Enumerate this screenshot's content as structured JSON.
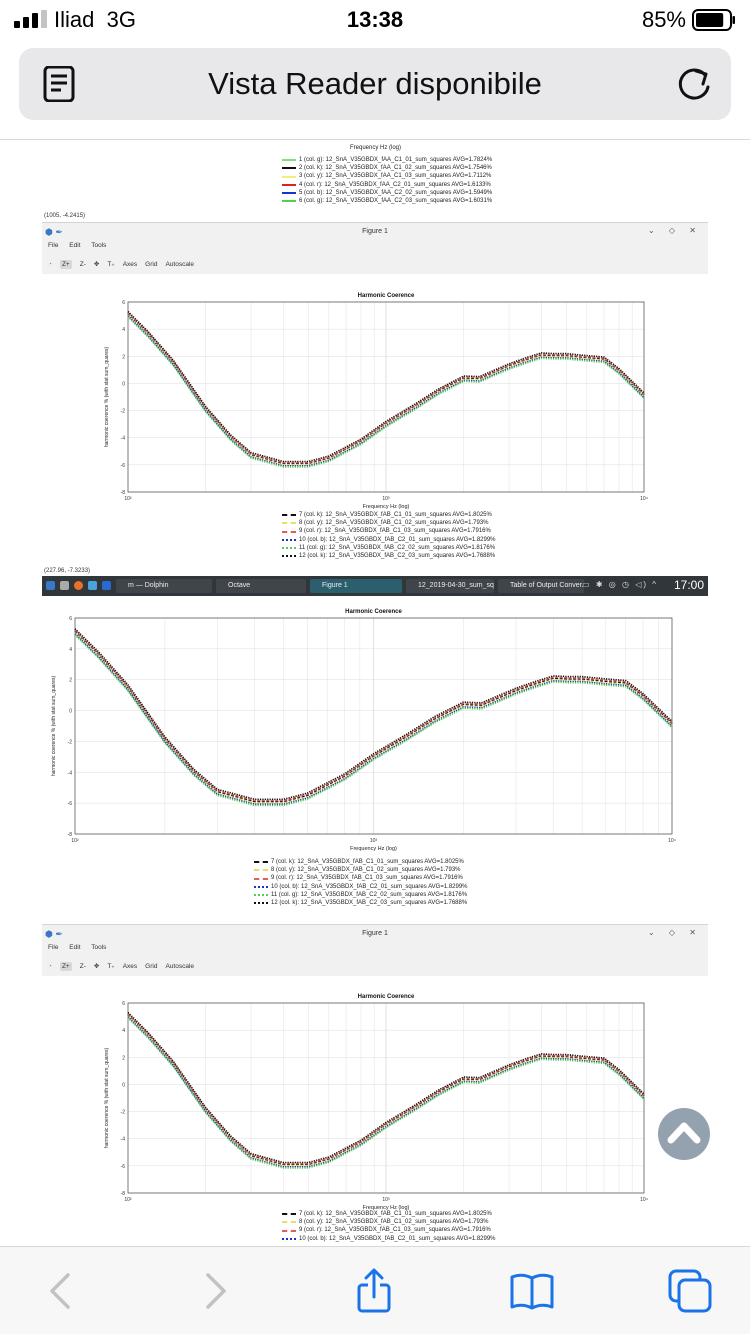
{
  "status_bar": {
    "carrier": "Iliad",
    "network": "3G",
    "time": "13:38",
    "battery": "85%",
    "battery_level": 0.85
  },
  "browser": {
    "url_title": "Vista Reader disponibile"
  },
  "screenshot": {
    "top_xlabel": "Frequency Hz (log)",
    "top_legend": [
      {
        "label": "1 (col. g): 12_SnA_V35GBDX_fAA_C1_01_sum_squares AVG=1.7824%",
        "color": "#7fe07f",
        "style": "solid"
      },
      {
        "label": "2 (col. k): 12_SnA_V35GBDX_fAA_C1_02_sum_squares AVG=1.7546%",
        "color": "#111111",
        "style": "solid"
      },
      {
        "label": "3 (col. y): 12_SnA_V35GBDX_fAA_C1_03_sum_squares AVG=1.7112%",
        "color": "#f2ee7a",
        "style": "solid"
      },
      {
        "label": "4 (col. r): 12_SnA_V35GBDX_fAA_C2_01_sum_squares AVG=1.6133%",
        "color": "#e02020",
        "style": "solid"
      },
      {
        "label": "5 (col. b): 12_SnA_V35GBDX_fAA_C2_02_sum_squares AVG=1.5949%",
        "color": "#1a2fd6",
        "style": "solid"
      },
      {
        "label": "6 (col. g): 12_SnA_V35GBDX_fAA_C2_03_sum_squares AVG=1.6031%",
        "color": "#4fd14f",
        "style": "solid"
      }
    ],
    "coord_a": "(1005, -4.2415)",
    "coord_b": "(227.96, -7.3233)",
    "figure_window": {
      "title": "Figure 1",
      "menu": [
        "File",
        "Edit",
        "Tools"
      ],
      "toolbar": [
        "Z+",
        "Z-",
        "Axes",
        "Grid",
        "Autoscale"
      ],
      "window_buttons": "⌄ ◇ ✕"
    },
    "legend_b": [
      {
        "label": "7 (col. k): 12_SnA_V35GBDX_fAB_C1_01_sum_squares AVG=1.8025%",
        "color": "#111111",
        "style": "dashed"
      },
      {
        "label": "8 (col. y): 12_SnA_V35GBDX_fAB_C1_02_sum_squares AVG=1.793%",
        "color": "#e8e060",
        "style": "dashed"
      },
      {
        "label": "9 (col. r): 12_SnA_V35GBDX_fAB_C1_03_sum_squares AVG=1.7916%",
        "color": "#e06060",
        "style": "dashed"
      },
      {
        "label": "10 (col. b): 12_SnA_V35GBDX_fAB_C2_01_sum_squares AVG=1.8299%",
        "color": "#1a2fd6",
        "style": "dotted"
      },
      {
        "label": "11 (col. g): 12_SnA_V35GBDX_fAB_C2_02_sum_squares AVG=1.8176%",
        "color": "#4fd14f",
        "style": "dotted"
      },
      {
        "label": "12 (col. k): 12_SnA_V35GBDX_fAB_C2_03_sum_squares AVG=1.7688%",
        "color": "#111111",
        "style": "dotted"
      }
    ],
    "legend_c": [
      {
        "label": "7 (col. k): 12_SnA_V35GBDX_fAB_C1_01_sum_squares AVG=1.8025%",
        "color": "#111111",
        "style": "dashed"
      },
      {
        "label": "8 (col. y): 12_SnA_V35GBDX_fAB_C1_02_sum_squares AVG=1.793%",
        "color": "#e8e060",
        "style": "dashed"
      },
      {
        "label": "9 (col. r): 12_SnA_V35GBDX_fAB_C1_03_sum_squares AVG=1.7916%",
        "color": "#e06060",
        "style": "dashed"
      },
      {
        "label": "10 (col. b): 12_SnA_V35GBDX_fAB_C2_01_sum_squares AVG=1.8299%",
        "color": "#1a2fd6",
        "style": "dotted"
      }
    ],
    "taskbar": {
      "items": [
        "m — Dolphin",
        "Octave",
        "Figure 1",
        "12_2019-04-30_sum_sq...",
        "Table of Output Conver..."
      ],
      "active_index": 2,
      "clock": "17:00",
      "tray": "▭ ✱ ◎ ◷ ◁) ^"
    }
  },
  "chart_data": [
    {
      "type": "line",
      "title": "Harmonic Coerence",
      "xlabel": "Frequency Hz (log)",
      "ylabel": "harmonic coerence % (with stat sum_quares)",
      "xscale": "log",
      "xlim": [
        100,
        10000
      ],
      "ylim": [
        -8,
        6
      ],
      "xticks": [
        "10²",
        "10³",
        "10⁴"
      ],
      "yticks": [
        "-8",
        "-6",
        "-4",
        "-2",
        "0",
        "2",
        "4",
        "6"
      ],
      "grid": true,
      "series_ref": "legend_b",
      "x": [
        100,
        120,
        150,
        200,
        250,
        300,
        400,
        500,
        600,
        800,
        1000,
        1300,
        1600,
        2000,
        2300,
        2500,
        3000,
        3500,
        4000,
        4500,
        5000,
        6000,
        7000,
        8000,
        10000
      ],
      "base_y": [
        5.1,
        3.6,
        1.5,
        -1.9,
        -4.0,
        -5.3,
        -5.95,
        -5.95,
        -5.55,
        -4.3,
        -3.0,
        -1.7,
        -0.6,
        0.35,
        0.3,
        0.6,
        1.25,
        1.7,
        2.05,
        2.0,
        2.0,
        1.85,
        1.75,
        0.9,
        -0.9
      ]
    },
    {
      "type": "line",
      "title": "Harmonic Coerence",
      "xlabel": "Frequency Hz (log)",
      "ylabel": "harmonic coerence % (with stat sum_quares)",
      "xscale": "log",
      "xlim": [
        100,
        10000
      ],
      "ylim": [
        -8,
        6
      ],
      "xticks": [
        "10²",
        "10³",
        "10⁴"
      ],
      "yticks": [
        "-8",
        "-6",
        "-4",
        "-2",
        "0",
        "2",
        "4",
        "6"
      ],
      "grid": true,
      "series_ref": "legend_b",
      "x": [
        100,
        120,
        150,
        200,
        250,
        300,
        400,
        500,
        600,
        800,
        1000,
        1300,
        1600,
        2000,
        2300,
        2500,
        3000,
        3500,
        4000,
        4500,
        5000,
        6000,
        7000,
        8000,
        10000
      ],
      "base_y": [
        5.1,
        3.6,
        1.5,
        -1.9,
        -4.0,
        -5.3,
        -5.95,
        -5.95,
        -5.55,
        -4.3,
        -3.0,
        -1.7,
        -0.6,
        0.35,
        0.3,
        0.6,
        1.25,
        1.7,
        2.05,
        2.0,
        2.0,
        1.85,
        1.75,
        0.9,
        -0.9
      ]
    },
    {
      "type": "line",
      "title": "Harmonic Coerence",
      "xlabel": "Frequency Hz (log)",
      "ylabel": "harmonic coerence % (with stat sum_quares)",
      "xscale": "log",
      "xlim": [
        100,
        10000
      ],
      "ylim": [
        -8,
        6
      ],
      "xticks": [
        "10²",
        "10³",
        "10⁴"
      ],
      "yticks": [
        "-8",
        "-6",
        "-4",
        "-2",
        "0",
        "2",
        "4",
        "6"
      ],
      "grid": true,
      "series_ref": "legend_b",
      "x": [
        100,
        120,
        150,
        200,
        250,
        300,
        400,
        500,
        600,
        800,
        1000,
        1300,
        1600,
        2000,
        2300,
        2500,
        3000,
        3500,
        4000,
        4500,
        5000,
        6000,
        7000,
        8000,
        10000
      ],
      "base_y": [
        5.1,
        3.6,
        1.5,
        -1.9,
        -4.0,
        -5.3,
        -5.95,
        -5.95,
        -5.55,
        -4.3,
        -3.0,
        -1.7,
        -0.6,
        0.35,
        0.3,
        0.6,
        1.25,
        1.7,
        2.05,
        2.0,
        2.0,
        1.85,
        1.75,
        0.9,
        -0.9
      ]
    }
  ]
}
